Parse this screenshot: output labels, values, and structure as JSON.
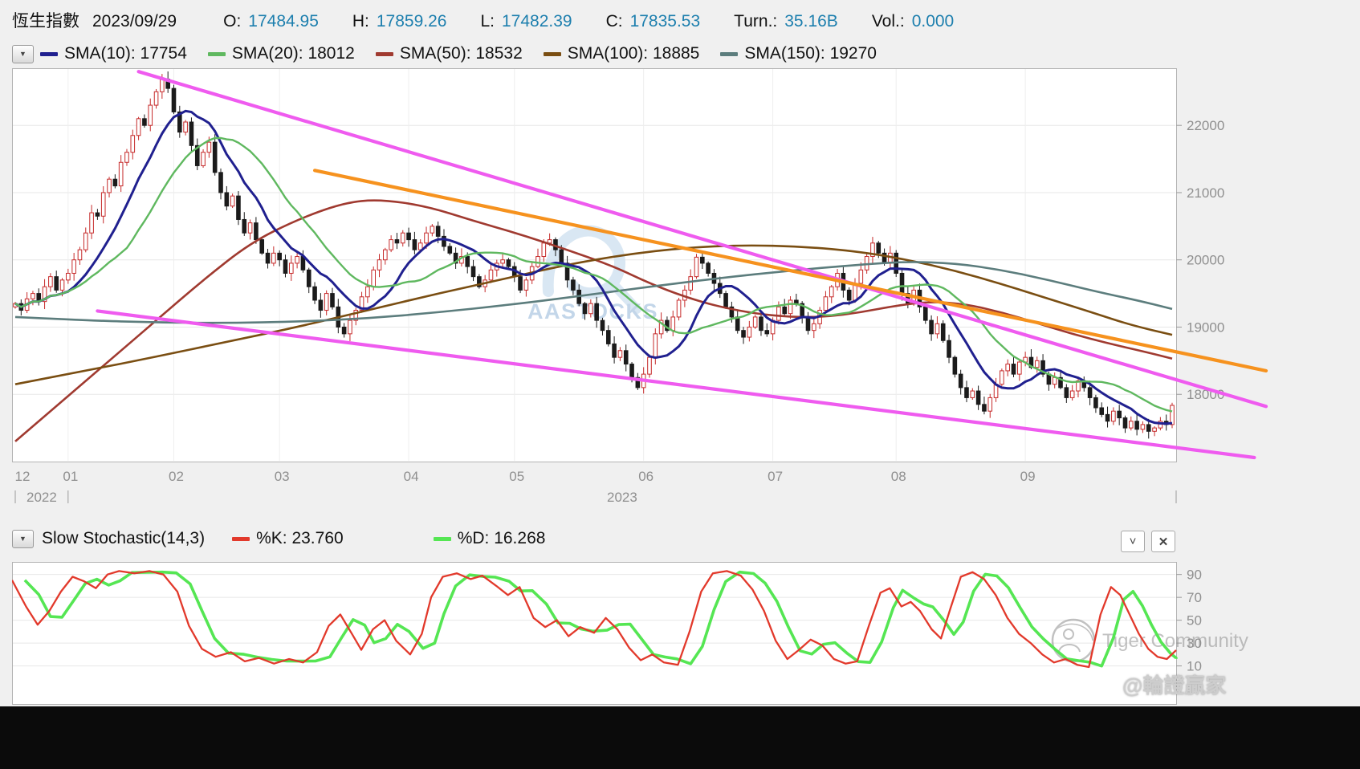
{
  "header": {
    "title": "恆生指數",
    "date": "2023/09/29",
    "value_color": "#1d7fae",
    "fields": [
      {
        "label": "O:",
        "value": "17484.95"
      },
      {
        "label": "H:",
        "value": "17859.26"
      },
      {
        "label": "L:",
        "value": "17482.39"
      },
      {
        "label": "C:",
        "value": "17835.53"
      },
      {
        "label": "Turn.:",
        "value": "35.16B"
      },
      {
        "label": "Vol.:",
        "value": "0.000"
      }
    ]
  },
  "main_legend": {
    "items": [
      {
        "label": "SMA(10): 17754",
        "color": "#20208f"
      },
      {
        "label": "SMA(20): 18012",
        "color": "#5fb85f"
      },
      {
        "label": "SMA(50): 18532",
        "color": "#a03a30"
      },
      {
        "label": "SMA(100): 18885",
        "color": "#7a4e12"
      },
      {
        "label": "SMA(150): 19270",
        "color": "#5c7d7d"
      }
    ]
  },
  "stoch_legend": {
    "title": "Slow Stochastic(14,3)",
    "items": [
      {
        "label": "%K: 23.760",
        "color": "#e2392b"
      },
      {
        "label": "%D: 16.268",
        "color": "#55e653"
      }
    ]
  },
  "icons": {
    "dropdown": "▼",
    "collapse": "˅",
    "close": "✕"
  },
  "watermarks": {
    "aastocks": "AASTOCKS",
    "tiger": "Tiger Community",
    "handle": "@輪證贏家"
  },
  "chart_data": [
    {
      "type": "candlestick",
      "title": "恆生指數 daily candlesticks with SMA overlays and trendlines",
      "x_axis": {
        "month_labels": [
          "12",
          "01",
          "02",
          "03",
          "04",
          "05",
          "06",
          "07",
          "08",
          "09"
        ],
        "month_start_index": [
          0,
          9,
          27,
          45,
          67,
          85,
          107,
          129,
          150,
          172
        ],
        "years": [
          "2022",
          "2023"
        ]
      },
      "y_axis": {
        "ticks": [
          18000,
          19000,
          20000,
          21000,
          22000
        ],
        "range": [
          17000,
          22850
        ]
      },
      "first_open": 19300,
      "candle_up_color": "#c62a2a",
      "candle_down_color": "#1b1b1b",
      "closes": [
        19350,
        19250,
        19420,
        19500,
        19380,
        19600,
        19750,
        19550,
        19700,
        19800,
        20000,
        20150,
        20400,
        20700,
        20650,
        21000,
        21200,
        21100,
        21450,
        21600,
        21850,
        22100,
        22000,
        22300,
        22500,
        22688,
        22550,
        22200,
        21900,
        22050,
        21700,
        21400,
        21600,
        21750,
        21300,
        21000,
        20800,
        20950,
        20600,
        20400,
        20550,
        20300,
        20100,
        19950,
        20100,
        20000,
        19800,
        19950,
        20050,
        19850,
        19600,
        19400,
        19250,
        19500,
        19300,
        19000,
        18900,
        19100,
        19250,
        19450,
        19600,
        19850,
        20000,
        20150,
        20300,
        20250,
        20400,
        20300,
        20150,
        20250,
        20400,
        20500,
        20350,
        20200,
        20100,
        19950,
        20050,
        19900,
        19750,
        19600,
        19700,
        19850,
        19950,
        20000,
        19900,
        19750,
        19550,
        19700,
        19900,
        20050,
        20250,
        20300,
        20150,
        19950,
        19700,
        19550,
        19350,
        19200,
        19350,
        19100,
        18950,
        18750,
        18550,
        18650,
        18450,
        18250,
        18100,
        18300,
        18550,
        18900,
        19100,
        18950,
        19150,
        19400,
        19550,
        19750,
        20040,
        19950,
        19800,
        19650,
        19500,
        19300,
        19150,
        18950,
        18850,
        19000,
        19150,
        18950,
        18900,
        19100,
        19300,
        19200,
        19400,
        19350,
        19150,
        18950,
        19050,
        19250,
        19450,
        19600,
        19800,
        19550,
        19400,
        19650,
        19850,
        20050,
        20250,
        20100,
        19950,
        20100,
        19800,
        19500,
        19350,
        19550,
        19300,
        19100,
        18900,
        19050,
        18800,
        18550,
        18300,
        18100,
        17950,
        18050,
        17850,
        17750,
        17950,
        18150,
        18350,
        18450,
        18300,
        18480,
        18550,
        18400,
        18500,
        18300,
        18150,
        18250,
        18100,
        17950,
        18050,
        18200,
        18100,
        17950,
        17800,
        17700,
        17600,
        17750,
        17650,
        17500,
        17600,
        17480,
        17550,
        17450,
        17500,
        17600,
        17550,
        17836
      ],
      "sma_computed": [
        {
          "name": "SMA10",
          "window": 10,
          "color": "#20208f",
          "width": 3,
          "last": 17754
        },
        {
          "name": "SMA20",
          "window": 20,
          "color": "#5fb85f",
          "width": 2.4,
          "last": 18012
        }
      ],
      "sma_overlays": [
        {
          "name": "SMA50",
          "color": "#a03a30",
          "last": 18532,
          "points": [
            [
              0,
              17300
            ],
            [
              8,
              17900
            ],
            [
              16,
              18500
            ],
            [
              24,
              19100
            ],
            [
              32,
              19700
            ],
            [
              40,
              20250
            ],
            [
              48,
              20600
            ],
            [
              56,
              20850
            ],
            [
              62,
              20900
            ],
            [
              70,
              20800
            ],
            [
              78,
              20580
            ],
            [
              86,
              20380
            ],
            [
              94,
              20150
            ],
            [
              102,
              19900
            ],
            [
              108,
              19650
            ],
            [
              114,
              19450
            ],
            [
              120,
              19300
            ],
            [
              126,
              19200
            ],
            [
              132,
              19150
            ],
            [
              138,
              19150
            ],
            [
              144,
              19220
            ],
            [
              150,
              19320
            ],
            [
              156,
              19380
            ],
            [
              162,
              19340
            ],
            [
              168,
              19220
            ],
            [
              174,
              19060
            ],
            [
              180,
              18900
            ],
            [
              186,
              18760
            ],
            [
              192,
              18640
            ],
            [
              197,
              18532
            ]
          ]
        },
        {
          "name": "SMA100",
          "color": "#7a4e12",
          "last": 18885,
          "points": [
            [
              0,
              18150
            ],
            [
              12,
              18350
            ],
            [
              24,
              18560
            ],
            [
              36,
              18780
            ],
            [
              48,
              19000
            ],
            [
              60,
              19250
            ],
            [
              72,
              19500
            ],
            [
              84,
              19730
            ],
            [
              94,
              19930
            ],
            [
              104,
              20080
            ],
            [
              114,
              20180
            ],
            [
              124,
              20220
            ],
            [
              134,
              20200
            ],
            [
              144,
              20120
            ],
            [
              152,
              20000
            ],
            [
              160,
              19840
            ],
            [
              168,
              19640
            ],
            [
              176,
              19420
            ],
            [
              184,
              19200
            ],
            [
              190,
              19030
            ],
            [
              197,
              18885
            ]
          ]
        },
        {
          "name": "SMA150",
          "color": "#5c7d7d",
          "last": 19270,
          "points": [
            [
              0,
              19150
            ],
            [
              12,
              19100
            ],
            [
              24,
              19070
            ],
            [
              36,
              19060
            ],
            [
              48,
              19080
            ],
            [
              60,
              19130
            ],
            [
              72,
              19220
            ],
            [
              84,
              19330
            ],
            [
              96,
              19460
            ],
            [
              108,
              19600
            ],
            [
              120,
              19730
            ],
            [
              132,
              19840
            ],
            [
              144,
              19930
            ],
            [
              152,
              19975
            ],
            [
              160,
              19950
            ],
            [
              168,
              19850
            ],
            [
              176,
              19700
            ],
            [
              184,
              19530
            ],
            [
              191,
              19400
            ],
            [
              197,
              19270
            ]
          ]
        }
      ],
      "trendlines": [
        {
          "color": "#ef5bef",
          "from": [
            21,
            22800
          ],
          "to": [
            213,
            17820
          ]
        },
        {
          "color": "#ef5bef",
          "from": [
            14,
            19240
          ],
          "to": [
            211,
            17060
          ]
        },
        {
          "color": "#f6921e",
          "from": [
            51,
            21330
          ],
          "to": [
            213,
            18350
          ]
        }
      ]
    },
    {
      "type": "line",
      "title": "Slow Stochastic(14,3)",
      "y_axis": {
        "ticks": [
          10,
          30,
          50,
          70,
          90
        ],
        "range": [
          -24,
          101
        ]
      },
      "series": [
        {
          "name": "%K",
          "color": "#e2392b",
          "last": 23.76,
          "points": [
            [
              0,
              85
            ],
            [
              0.012,
              62
            ],
            [
              0.022,
              46
            ],
            [
              0.032,
              58
            ],
            [
              0.042,
              75
            ],
            [
              0.052,
              88
            ],
            [
              0.062,
              84
            ],
            [
              0.072,
              78
            ],
            [
              0.082,
              90
            ],
            [
              0.092,
              93
            ],
            [
              0.105,
              91
            ],
            [
              0.118,
              93
            ],
            [
              0.13,
              90
            ],
            [
              0.142,
              75
            ],
            [
              0.152,
              45
            ],
            [
              0.163,
              25
            ],
            [
              0.175,
              18
            ],
            [
              0.188,
              22
            ],
            [
              0.2,
              14
            ],
            [
              0.212,
              17
            ],
            [
              0.225,
              12
            ],
            [
              0.238,
              16
            ],
            [
              0.25,
              13
            ],
            [
              0.262,
              22
            ],
            [
              0.272,
              45
            ],
            [
              0.282,
              55
            ],
            [
              0.292,
              38
            ],
            [
              0.3,
              24
            ],
            [
              0.31,
              42
            ],
            [
              0.32,
              50
            ],
            [
              0.33,
              32
            ],
            [
              0.342,
              20
            ],
            [
              0.352,
              38
            ],
            [
              0.36,
              70
            ],
            [
              0.37,
              88
            ],
            [
              0.382,
              91
            ],
            [
              0.394,
              86
            ],
            [
              0.404,
              89
            ],
            [
              0.416,
              80
            ],
            [
              0.426,
              72
            ],
            [
              0.436,
              79
            ],
            [
              0.448,
              52
            ],
            [
              0.458,
              44
            ],
            [
              0.468,
              50
            ],
            [
              0.478,
              36
            ],
            [
              0.488,
              44
            ],
            [
              0.5,
              39
            ],
            [
              0.51,
              52
            ],
            [
              0.52,
              42
            ],
            [
              0.53,
              26
            ],
            [
              0.54,
              15
            ],
            [
              0.55,
              20
            ],
            [
              0.56,
              13
            ],
            [
              0.572,
              11
            ],
            [
              0.582,
              40
            ],
            [
              0.592,
              75
            ],
            [
              0.602,
              91
            ],
            [
              0.614,
              93
            ],
            [
              0.626,
              89
            ],
            [
              0.636,
              77
            ],
            [
              0.646,
              58
            ],
            [
              0.656,
              32
            ],
            [
              0.666,
              16
            ],
            [
              0.676,
              24
            ],
            [
              0.686,
              33
            ],
            [
              0.696,
              28
            ],
            [
              0.706,
              16
            ],
            [
              0.716,
              12
            ],
            [
              0.726,
              14
            ],
            [
              0.736,
              45
            ],
            [
              0.746,
              74
            ],
            [
              0.754,
              78
            ],
            [
              0.764,
              62
            ],
            [
              0.772,
              66
            ],
            [
              0.78,
              58
            ],
            [
              0.79,
              42
            ],
            [
              0.798,
              34
            ],
            [
              0.806,
              60
            ],
            [
              0.815,
              88
            ],
            [
              0.825,
              92
            ],
            [
              0.835,
              86
            ],
            [
              0.845,
              72
            ],
            [
              0.855,
              52
            ],
            [
              0.865,
              38
            ],
            [
              0.875,
              30
            ],
            [
              0.885,
              20
            ],
            [
              0.895,
              13
            ],
            [
              0.905,
              16
            ],
            [
              0.915,
              11
            ],
            [
              0.925,
              9
            ],
            [
              0.935,
              55
            ],
            [
              0.944,
              79
            ],
            [
              0.952,
              72
            ],
            [
              0.96,
              55
            ],
            [
              0.968,
              38
            ],
            [
              0.976,
              25
            ],
            [
              0.984,
              18
            ],
            [
              0.992,
              16
            ],
            [
              1,
              23.76
            ]
          ]
        },
        {
          "name": "%D",
          "color": "#55e653",
          "last": 16.268,
          "derived": "smoothed %K"
        }
      ]
    }
  ]
}
